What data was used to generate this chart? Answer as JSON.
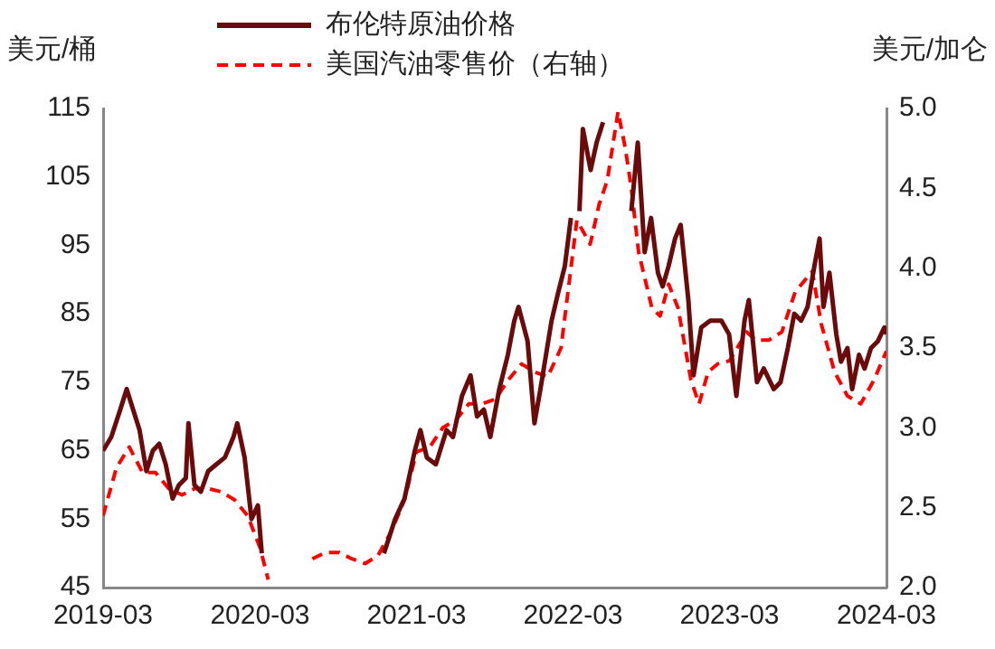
{
  "chart_data": {
    "type": "line",
    "ylabel": "美元/桶",
    "y2label": "美元/加仑",
    "legend": "top",
    "marker": "none",
    "xlim": [
      "2019-03",
      "2024-03"
    ],
    "xticks": [
      {
        "value": "2019-03",
        "label": "2019-03"
      },
      {
        "value": "2020-03",
        "label": "2020-03"
      },
      {
        "value": "2021-03",
        "label": "2021-03"
      },
      {
        "value": "2022-03",
        "label": "2022-03"
      },
      {
        "value": "2023-03",
        "label": "2023-03"
      },
      {
        "value": "2024-03",
        "label": "2024-03"
      }
    ],
    "ylim": [
      45,
      115
    ],
    "yticks": [
      45,
      55,
      65,
      75,
      85,
      95,
      105,
      115
    ],
    "y2lim": [
      2.0,
      5.0
    ],
    "y2ticks": [
      {
        "value": 2,
        "label": "2.0"
      },
      {
        "value": 2.5,
        "label": "2.5"
      },
      {
        "value": 3,
        "label": "3.0"
      },
      {
        "value": 3.5,
        "label": "3.5"
      },
      {
        "value": 4,
        "label": "4.0"
      },
      {
        "value": 4.5,
        "label": "4.5"
      },
      {
        "value": 5,
        "label": "5.0"
      }
    ],
    "series": [
      {
        "name": "布伦特原油价格",
        "color": "#6b0a0a",
        "line_style": "solid",
        "x": [
          "2019-03-01",
          "2019-03-20",
          "2019-04-10",
          "2019-04-25",
          "2019-05-10",
          "2019-05-25",
          "2019-06-10",
          "2019-06-25",
          "2019-07-10",
          "2019-07-25",
          "2019-08-10",
          "2019-08-25",
          "2019-09-10",
          "2019-09-16",
          "2019-09-30",
          "2019-10-15",
          "2019-11-01",
          "2019-11-20",
          "2019-12-10",
          "2019-12-30",
          "2020-01-08",
          "2020-01-25",
          "2020-02-10",
          "2020-02-25",
          "2020-03-05",
          "2020-03-09",
          "2020-08-10",
          "2020-08-25",
          "2020-11-25",
          "2020-12-15",
          "2021-01-10",
          "2021-02-01",
          "2021-02-25",
          "2021-03-10",
          "2021-03-25",
          "2021-04-15",
          "2021-05-10",
          "2021-05-25",
          "2021-06-15",
          "2021-07-05",
          "2021-07-20",
          "2021-08-05",
          "2021-08-20",
          "2021-09-10",
          "2021-09-30",
          "2021-10-15",
          "2021-10-25",
          "2021-11-15",
          "2021-12-01",
          "2021-12-15",
          "2022-01-10",
          "2022-01-25",
          "2022-02-10",
          "2022-02-24",
          "2022-03-04",
          "2022-03-16",
          "2022-03-24",
          "2022-04-11",
          "2022-04-25",
          "2022-05-10",
          "2022-05-25",
          "2022-06-05",
          "2022-06-20",
          "2022-07-05",
          "2022-07-15",
          "2022-07-30",
          "2022-08-15",
          "2022-08-30",
          "2022-09-15",
          "2022-09-26",
          "2022-10-10",
          "2022-10-25",
          "2022-11-07",
          "2022-11-25",
          "2022-12-07",
          "2022-12-25",
          "2023-01-15",
          "2023-02-10",
          "2023-02-28",
          "2023-03-17",
          "2023-04-05",
          "2023-04-15",
          "2023-05-04",
          "2023-05-20",
          "2023-06-12",
          "2023-06-28",
          "2023-07-15",
          "2023-07-30",
          "2023-08-15",
          "2023-08-30",
          "2023-09-15",
          "2023-09-27",
          "2023-10-06",
          "2023-10-20",
          "2023-11-05",
          "2023-11-16",
          "2023-12-01",
          "2023-12-12",
          "2023-12-28",
          "2024-01-10",
          "2024-01-25",
          "2024-02-10",
          "2024-02-25",
          "2024-03-01"
        ],
        "values": [
          65,
          67,
          71,
          74,
          71,
          68,
          62,
          65,
          66,
          63,
          58,
          60,
          61,
          69,
          60,
          59,
          62,
          63,
          64,
          67,
          69,
          64,
          55,
          57,
          50,
          null,
          null,
          null,
          null,
          50,
          55,
          58,
          65,
          68,
          64,
          63,
          68,
          67,
          73,
          76,
          70,
          71,
          67,
          74,
          79,
          84,
          86,
          81,
          69,
          74,
          84,
          88,
          92,
          99,
          null,
          100,
          112,
          106,
          110,
          113,
          null,
          null,
          null,
          null,
          100,
          110,
          94,
          99,
          91,
          89,
          92,
          96,
          98,
          87,
          76,
          83,
          84,
          84,
          82,
          73,
          84,
          87,
          75,
          77,
          74,
          75,
          80,
          85,
          84,
          86,
          92,
          96,
          86,
          91,
          82,
          78,
          80,
          74,
          79,
          77,
          80,
          81,
          83,
          82
        ]
      },
      {
        "name": "美国汽油零售价（右轴）",
        "color": "#ff0000",
        "line_style": "dashed",
        "axis": "y2",
        "x": [
          "2019-03-01",
          "2019-04-01",
          "2019-05-01",
          "2019-06-01",
          "2019-07-01",
          "2019-08-01",
          "2019-09-01",
          "2019-10-01",
          "2019-11-01",
          "2019-12-01",
          "2020-01-01",
          "2020-02-01",
          "2020-03-01",
          "2020-03-20",
          "2020-06-01",
          "2020-07-01",
          "2020-08-01",
          "2020-09-01",
          "2020-10-01",
          "2020-11-01",
          "2020-12-01",
          "2021-01-01",
          "2021-02-01",
          "2021-03-01",
          "2021-04-01",
          "2021-05-01",
          "2021-06-01",
          "2021-07-01",
          "2021-08-01",
          "2021-09-01",
          "2021-10-01",
          "2021-11-01",
          "2021-12-01",
          "2022-01-01",
          "2022-02-01",
          "2022-03-10",
          "2022-04-10",
          "2022-05-01",
          "2022-05-20",
          "2022-06-14",
          "2022-07-01",
          "2022-07-15",
          "2022-08-01",
          "2022-09-01",
          "2022-09-20",
          "2022-10-10",
          "2022-11-01",
          "2022-12-01",
          "2022-12-20",
          "2023-01-10",
          "2023-02-01",
          "2023-03-01",
          "2023-04-10",
          "2023-05-01",
          "2023-06-01",
          "2023-07-01",
          "2023-08-01",
          "2023-09-10",
          "2023-10-01",
          "2023-11-01",
          "2023-12-01",
          "2024-01-01",
          "2024-02-01",
          "2024-03-01"
        ],
        "values": [
          2.45,
          2.75,
          2.88,
          2.72,
          2.72,
          2.62,
          2.58,
          2.62,
          2.62,
          2.6,
          2.55,
          2.45,
          2.25,
          2.05,
          null,
          2.18,
          2.22,
          2.22,
          2.18,
          2.15,
          2.2,
          2.35,
          2.55,
          2.85,
          2.88,
          3.0,
          3.05,
          3.15,
          3.15,
          3.18,
          3.3,
          3.4,
          3.35,
          3.32,
          3.5,
          4.3,
          4.15,
          4.4,
          4.55,
          4.98,
          4.75,
          4.5,
          4.1,
          3.75,
          3.7,
          3.9,
          3.75,
          3.3,
          3.15,
          3.35,
          3.4,
          3.42,
          3.6,
          3.55,
          3.55,
          3.6,
          3.85,
          3.98,
          3.65,
          3.35,
          3.2,
          3.15,
          3.3,
          3.48
        ]
      }
    ]
  }
}
